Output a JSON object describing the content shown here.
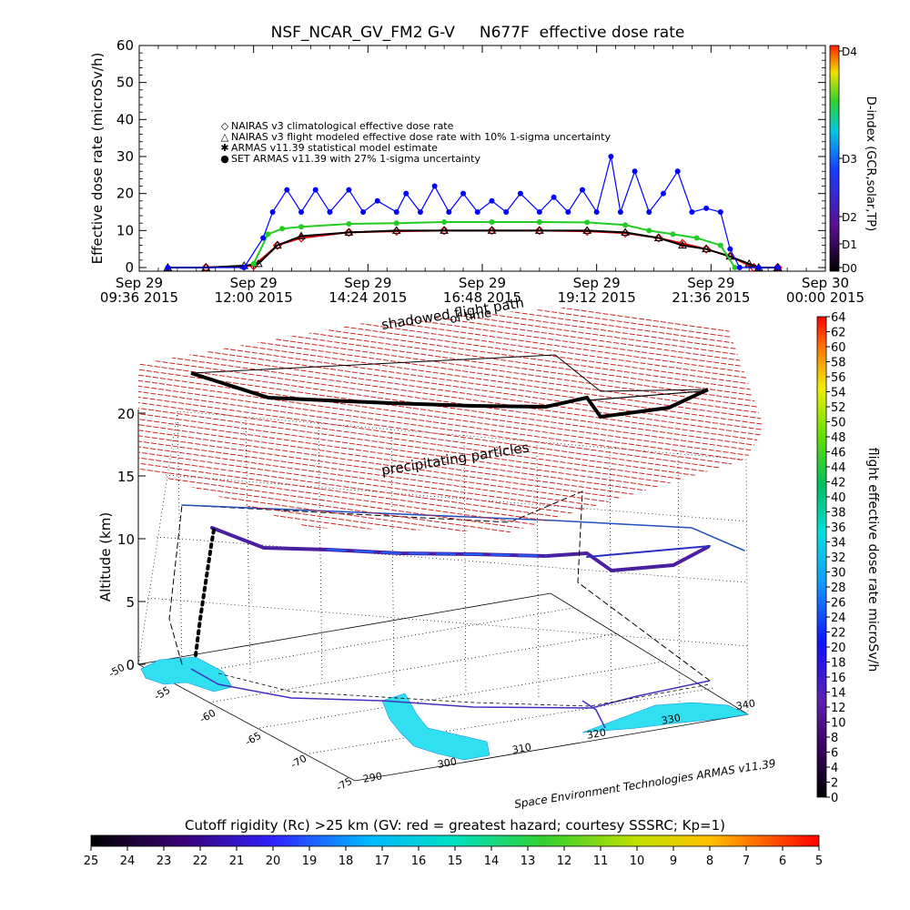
{
  "title": "NSF_NCAR_GV_FM2 G-V     N677F  effective dose rate",
  "chart_data": [
    {
      "type": "scatter",
      "title": "NSF_NCAR_GV_FM2 G-V     N677F  effective dose rate",
      "ylabel": "Effective dose rate (microSv/h)",
      "ylim": [
        0,
        60
      ],
      "yticks": [
        "0",
        "10",
        "20",
        "30",
        "40",
        "50",
        "60"
      ],
      "xticks": [
        {
          "top": "Sep 29",
          "bottom": "09:36 2015"
        },
        {
          "top": "Sep 29",
          "bottom": "12:00 2015"
        },
        {
          "top": "Sep 29",
          "bottom": "14:24 2015"
        },
        {
          "top": "Sep 29",
          "bottom": "16:48 2015"
        },
        {
          "top": "Sep 29",
          "bottom": "19:12 2015"
        },
        {
          "top": "Sep 29",
          "bottom": "21:36 2015"
        },
        {
          "top": "Sep 30",
          "bottom": "00:00 2015"
        }
      ],
      "x_hours": [
        9.6,
        24.0
      ],
      "legend": [
        {
          "symbol": "◇",
          "color": "#e00000",
          "label": "NAIRAS v3 climatological effective dose rate"
        },
        {
          "symbol": "△",
          "color": "#000000",
          "label": "NAIRAS v3 flight modeled effective dose rate with 10% 1-sigma uncertainty"
        },
        {
          "symbol": "✱",
          "color": "#22cc22",
          "label": "ARMAS v11.39 statistical model estimate"
        },
        {
          "symbol": "●",
          "color": "#0000ff",
          "label": "SET ARMAS v11.39 with 27% 1-sigma uncertainty"
        }
      ],
      "series": [
        {
          "name": "NAIRAS v3 climatological effective dose rate",
          "color": "#e00000",
          "x": [
            11.0,
            12.0,
            12.5,
            13.0,
            14.0,
            15.0,
            16.0,
            17.0,
            18.0,
            19.0,
            19.8,
            20.5,
            21.0,
            21.5,
            22.0,
            22.5,
            23.0
          ],
          "y": [
            0,
            0.5,
            6,
            8,
            9.5,
            9.8,
            10,
            10,
            10,
            9.8,
            9.3,
            8,
            6.5,
            5,
            3,
            0,
            0
          ]
        },
        {
          "name": "NAIRAS v3 flight modeled effective dose rate with 10% 1-sigma uncertainty",
          "color": "#000000",
          "x": [
            10.2,
            11.0,
            11.8,
            12.1,
            12.5,
            13.0,
            14.0,
            15.0,
            16.0,
            17.0,
            18.0,
            19.0,
            19.8,
            20.5,
            21.0,
            21.5,
            22.0,
            22.4,
            22.6,
            23.0
          ],
          "y": [
            0,
            0,
            0.5,
            1,
            6,
            8.5,
            9.5,
            10,
            10,
            10,
            10,
            10,
            9.5,
            8,
            6,
            5,
            3,
            1,
            0,
            0
          ]
        },
        {
          "name": "ARMAS v11.39 statistical model estimate",
          "color": "#22cc22",
          "x": [
            12.0,
            12.3,
            12.6,
            13.0,
            14.0,
            15.0,
            16.0,
            17.0,
            18.0,
            19.0,
            19.8,
            20.3,
            20.8,
            21.3,
            21.8,
            22.1
          ],
          "y": [
            1,
            9,
            10.5,
            11,
            11.8,
            12,
            12.3,
            12.3,
            12.3,
            12.2,
            11.5,
            10,
            9,
            8,
            6,
            0
          ]
        },
        {
          "name": "SET ARMAS v11.39 with 27% 1-sigma uncertainty",
          "color": "#0000ff",
          "x": [
            10.2,
            11.8,
            12.2,
            12.4,
            12.7,
            13.0,
            13.3,
            13.6,
            14.0,
            14.3,
            14.6,
            15.0,
            15.2,
            15.5,
            15.8,
            16.1,
            16.4,
            16.7,
            17.0,
            17.3,
            17.6,
            18.0,
            18.3,
            18.6,
            18.9,
            19.2,
            19.5,
            19.7,
            20.0,
            20.3,
            20.6,
            20.9,
            21.2,
            21.5,
            21.8,
            22.0,
            22.2,
            22.6,
            23.0
          ],
          "y": [
            0,
            0,
            8,
            15,
            21,
            15,
            21,
            15,
            21,
            15,
            18,
            15,
            20,
            15,
            22,
            15,
            20,
            15,
            18,
            15,
            20,
            15,
            19,
            15,
            21,
            15,
            30,
            15,
            26,
            15,
            20,
            26,
            15,
            16,
            15,
            5,
            0,
            0,
            0
          ]
        }
      ],
      "right_colorbar": {
        "label": "D-index (GCR,solar,TP)",
        "ticks": [
          "D0",
          "D1",
          "D2",
          "D3",
          "D4"
        ]
      }
    },
    {
      "type": "line",
      "subtype": "3d-flight-track",
      "zlabel": "Altitude (km)",
      "zticks": [
        "0",
        "5",
        "10",
        "15",
        "20"
      ],
      "lat_ticks": [
        "-50",
        "-55",
        "-60",
        "-65",
        "-70",
        "-75"
      ],
      "lon_ticks": [
        "290",
        "300",
        "310",
        "320",
        "330",
        "340"
      ],
      "annotations": [
        "shadowed flight path",
        "of time",
        "precipitating particles"
      ],
      "flight_altitude_km": 13,
      "particle_layer_km": 20,
      "colorbar": {
        "label": "flight effective dose rate microSv/h",
        "ticks": [
          "0",
          "2",
          "4",
          "6",
          "8",
          "10",
          "12",
          "14",
          "16",
          "18",
          "20",
          "22",
          "24",
          "26",
          "28",
          "30",
          "32",
          "34",
          "36",
          "38",
          "40",
          "42",
          "44",
          "46",
          "48",
          "50",
          "52",
          "54",
          "56",
          "58",
          "60",
          "62",
          "64"
        ]
      },
      "credit": "Space Environment Technologies ARMAS v11.39",
      "bottom_colorbar": {
        "label": "Cutoff rigidity (Rc) >25 km (GV: red = greatest hazard; courtesy SSSRC; Kp=1)",
        "ticks": [
          "25",
          "24",
          "23",
          "22",
          "21",
          "20",
          "19",
          "18",
          "17",
          "16",
          "15",
          "14",
          "13",
          "12",
          "11",
          "10",
          "9",
          "8",
          "7",
          "6",
          "5"
        ]
      }
    }
  ]
}
